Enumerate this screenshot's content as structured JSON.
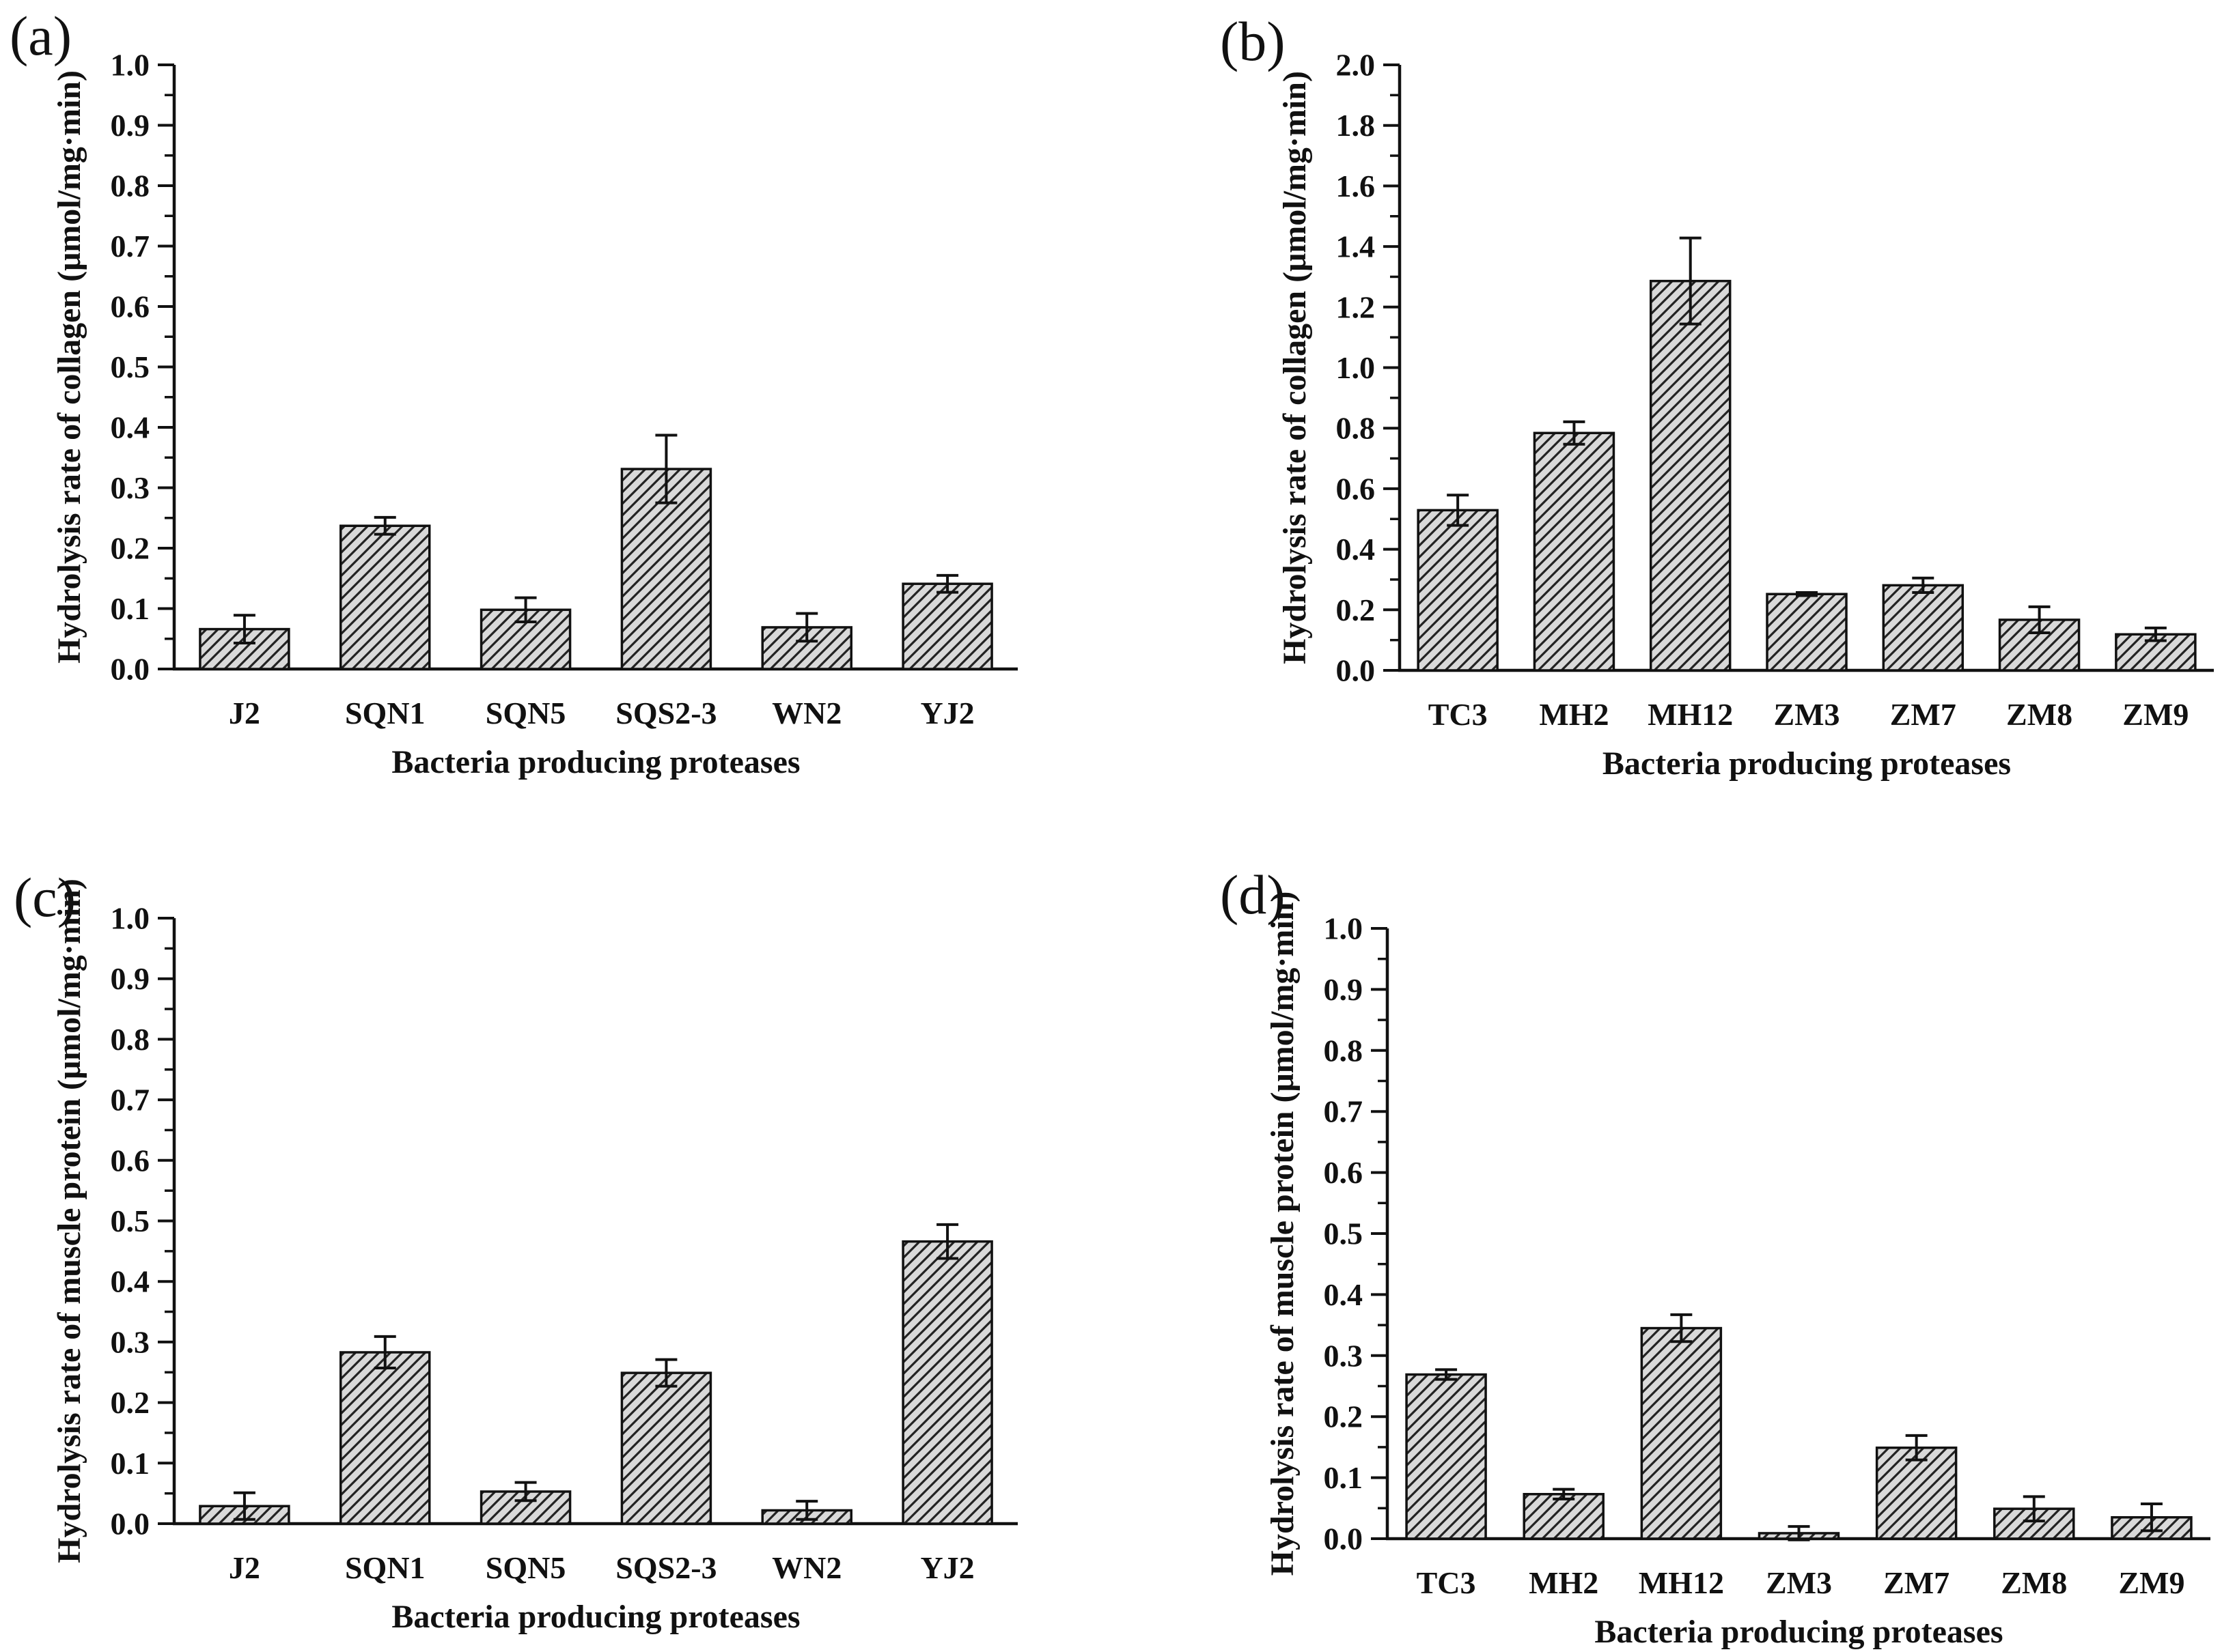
{
  "figure": {
    "background_color": "#ffffff",
    "axis_color": "#111111",
    "bar_fill_color": "#d9d9d9",
    "hatch_line_color": "#222222",
    "hatch_style": "diagonal-forward-slash",
    "error_bar_color": "#111111"
  },
  "chart_data": [
    {
      "id": "a",
      "panel_label": "(a)",
      "type": "bar",
      "title": "",
      "xlabel": "Bacteria producing proteases",
      "ylabel": "Hydrolysis rate of collagen (μmol/mg·min)",
      "categories": [
        "J2",
        "SQN1",
        "SQN5",
        "SQS2-3",
        "WN2",
        "YJ2"
      ],
      "values": [
        0.066,
        0.237,
        0.098,
        0.331,
        0.069,
        0.141
      ],
      "errors": [
        0.023,
        0.014,
        0.02,
        0.056,
        0.023,
        0.014
      ],
      "ylim": [
        0.0,
        1.0
      ],
      "ytick_step": 0.1,
      "ytick_labels": [
        "0.0",
        "0.1",
        "0.2",
        "0.3",
        "0.4",
        "0.5",
        "0.6",
        "0.7",
        "0.8",
        "0.9",
        "1.0"
      ],
      "minor_ticks": true,
      "grid": false,
      "legend": "none"
    },
    {
      "id": "b",
      "panel_label": "(b)",
      "type": "bar",
      "title": "",
      "xlabel": "Bacteria producing proteases",
      "ylabel": "Hydrolysis rate of collagen (μmol/mg·min)",
      "categories": [
        "TC3",
        "MH2",
        "MH12",
        "ZM3",
        "ZM7",
        "ZM8",
        "ZM9"
      ],
      "values": [
        0.529,
        0.784,
        1.286,
        0.252,
        0.281,
        0.167,
        0.119
      ],
      "errors": [
        0.05,
        0.037,
        0.142,
        0.005,
        0.024,
        0.043,
        0.021
      ],
      "ylim": [
        0.0,
        2.0
      ],
      "ytick_step": 0.2,
      "ytick_labels": [
        "0.0",
        "0.2",
        "0.4",
        "0.6",
        "0.8",
        "1.0",
        "1.2",
        "1.4",
        "1.6",
        "1.8",
        "2.0"
      ],
      "minor_ticks": true,
      "grid": false,
      "legend": "none"
    },
    {
      "id": "c",
      "panel_label": "(c)",
      "type": "bar",
      "title": "",
      "xlabel": "Bacteria producing proteases",
      "ylabel": "Hydrolysis rate of muscle protein (μmol/mg·min)",
      "categories": [
        "J2",
        "SQN1",
        "SQN5",
        "SQS2-3",
        "WN2",
        "YJ2"
      ],
      "values": [
        0.029,
        0.283,
        0.053,
        0.249,
        0.022,
        0.466
      ],
      "errors": [
        0.022,
        0.026,
        0.015,
        0.022,
        0.015,
        0.028
      ],
      "ylim": [
        0.0,
        1.0
      ],
      "ytick_step": 0.1,
      "ytick_labels": [
        "0.0",
        "0.1",
        "0.2",
        "0.3",
        "0.4",
        "0.5",
        "0.6",
        "0.7",
        "0.8",
        "0.9",
        "1.0"
      ],
      "minor_ticks": true,
      "grid": false,
      "legend": "none"
    },
    {
      "id": "d",
      "panel_label": "(d)",
      "type": "bar",
      "title": "",
      "xlabel": "Bacteria producing proteases",
      "ylabel": "Hydrolysis rate of muscle protein (μmol/mg·min)",
      "categories": [
        "TC3",
        "MH2",
        "MH12",
        "ZM3",
        "ZM7",
        "ZM8",
        "ZM9"
      ],
      "values": [
        0.269,
        0.073,
        0.345,
        0.009,
        0.149,
        0.049,
        0.035
      ],
      "errors": [
        0.008,
        0.008,
        0.022,
        0.011,
        0.02,
        0.02,
        0.022
      ],
      "ylim": [
        0.0,
        1.0
      ],
      "ytick_step": 0.1,
      "ytick_labels": [
        "0.0",
        "0.1",
        "0.2",
        "0.3",
        "0.4",
        "0.5",
        "0.6",
        "0.7",
        "0.8",
        "0.9",
        "1.0"
      ],
      "minor_ticks": true,
      "grid": false,
      "legend": "none"
    }
  ]
}
